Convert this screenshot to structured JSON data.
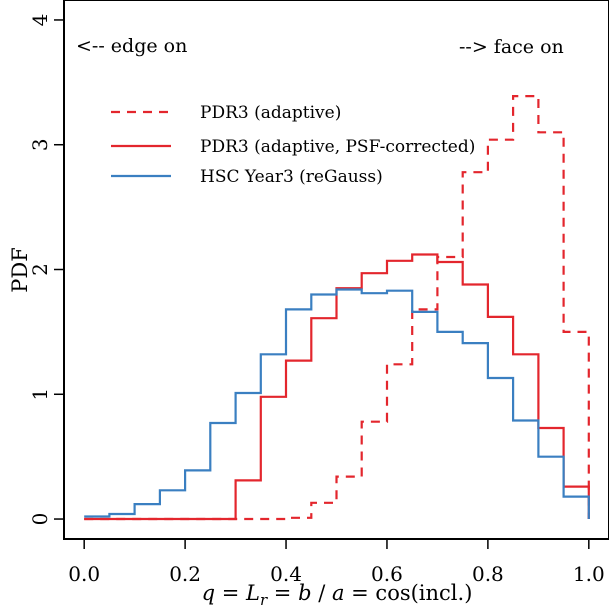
{
  "chart_data": {
    "type": "line",
    "step": true,
    "xlabel": "q = L_r = b / a = cos(incl.)",
    "xlabel_parts": {
      "q": "q",
      "eq1": " = ",
      "L": "L",
      "sub": "r",
      "eq2": " = ",
      "b": "b",
      "slash": " / ",
      "a": "a",
      "eq3": " = cos(incl.)"
    },
    "ylabel": "PDF",
    "xlim": [
      -0.04,
      1.04
    ],
    "ylim": [
      -0.16,
      4.16
    ],
    "x_ticks": [
      0.0,
      0.2,
      0.4,
      0.6,
      0.8,
      1.0
    ],
    "x_tick_labels": [
      "0.0",
      "0.2",
      "0.4",
      "0.6",
      "0.8",
      "1.0"
    ],
    "y_ticks": [
      0,
      1,
      2,
      3,
      4
    ],
    "y_tick_labels": [
      "0",
      "1",
      "2",
      "3",
      "4"
    ],
    "annotations": {
      "left": "<-- edge on",
      "right": "--> face on"
    },
    "legend_position": "upper-left",
    "bin_edges": [
      0.0,
      0.05,
      0.1,
      0.15,
      0.2,
      0.25,
      0.3,
      0.35,
      0.4,
      0.45,
      0.5,
      0.55,
      0.6,
      0.65,
      0.7,
      0.75,
      0.8,
      0.85,
      0.9,
      0.95,
      1.0
    ],
    "series": [
      {
        "name": "PDR3 (adaptive)",
        "color": "#e3262d",
        "dash": true,
        "values": [
          0.0,
          0.0,
          0.0,
          0.0,
          0.0,
          0.0,
          0.0,
          0.0,
          0.01,
          0.13,
          0.34,
          0.78,
          1.24,
          1.68,
          2.1,
          2.78,
          3.04,
          3.39,
          3.1,
          1.5
        ]
      },
      {
        "name": "PDR3 (adaptive, PSF-corrected)",
        "color": "#e3262d",
        "dash": false,
        "values": [
          0.0,
          0.0,
          0.0,
          0.0,
          0.0,
          0.0,
          0.31,
          0.98,
          1.27,
          1.61,
          1.85,
          1.97,
          2.07,
          2.12,
          2.06,
          1.88,
          1.62,
          1.32,
          0.73,
          0.26
        ]
      },
      {
        "name": "HSC Year3 (reGauss)",
        "color": "#3a7fc1",
        "dash": false,
        "values": [
          0.02,
          0.04,
          0.12,
          0.23,
          0.39,
          0.77,
          1.01,
          1.32,
          1.68,
          1.8,
          1.84,
          1.81,
          1.83,
          1.66,
          1.5,
          1.41,
          1.13,
          0.79,
          0.5,
          0.18
        ]
      }
    ]
  }
}
